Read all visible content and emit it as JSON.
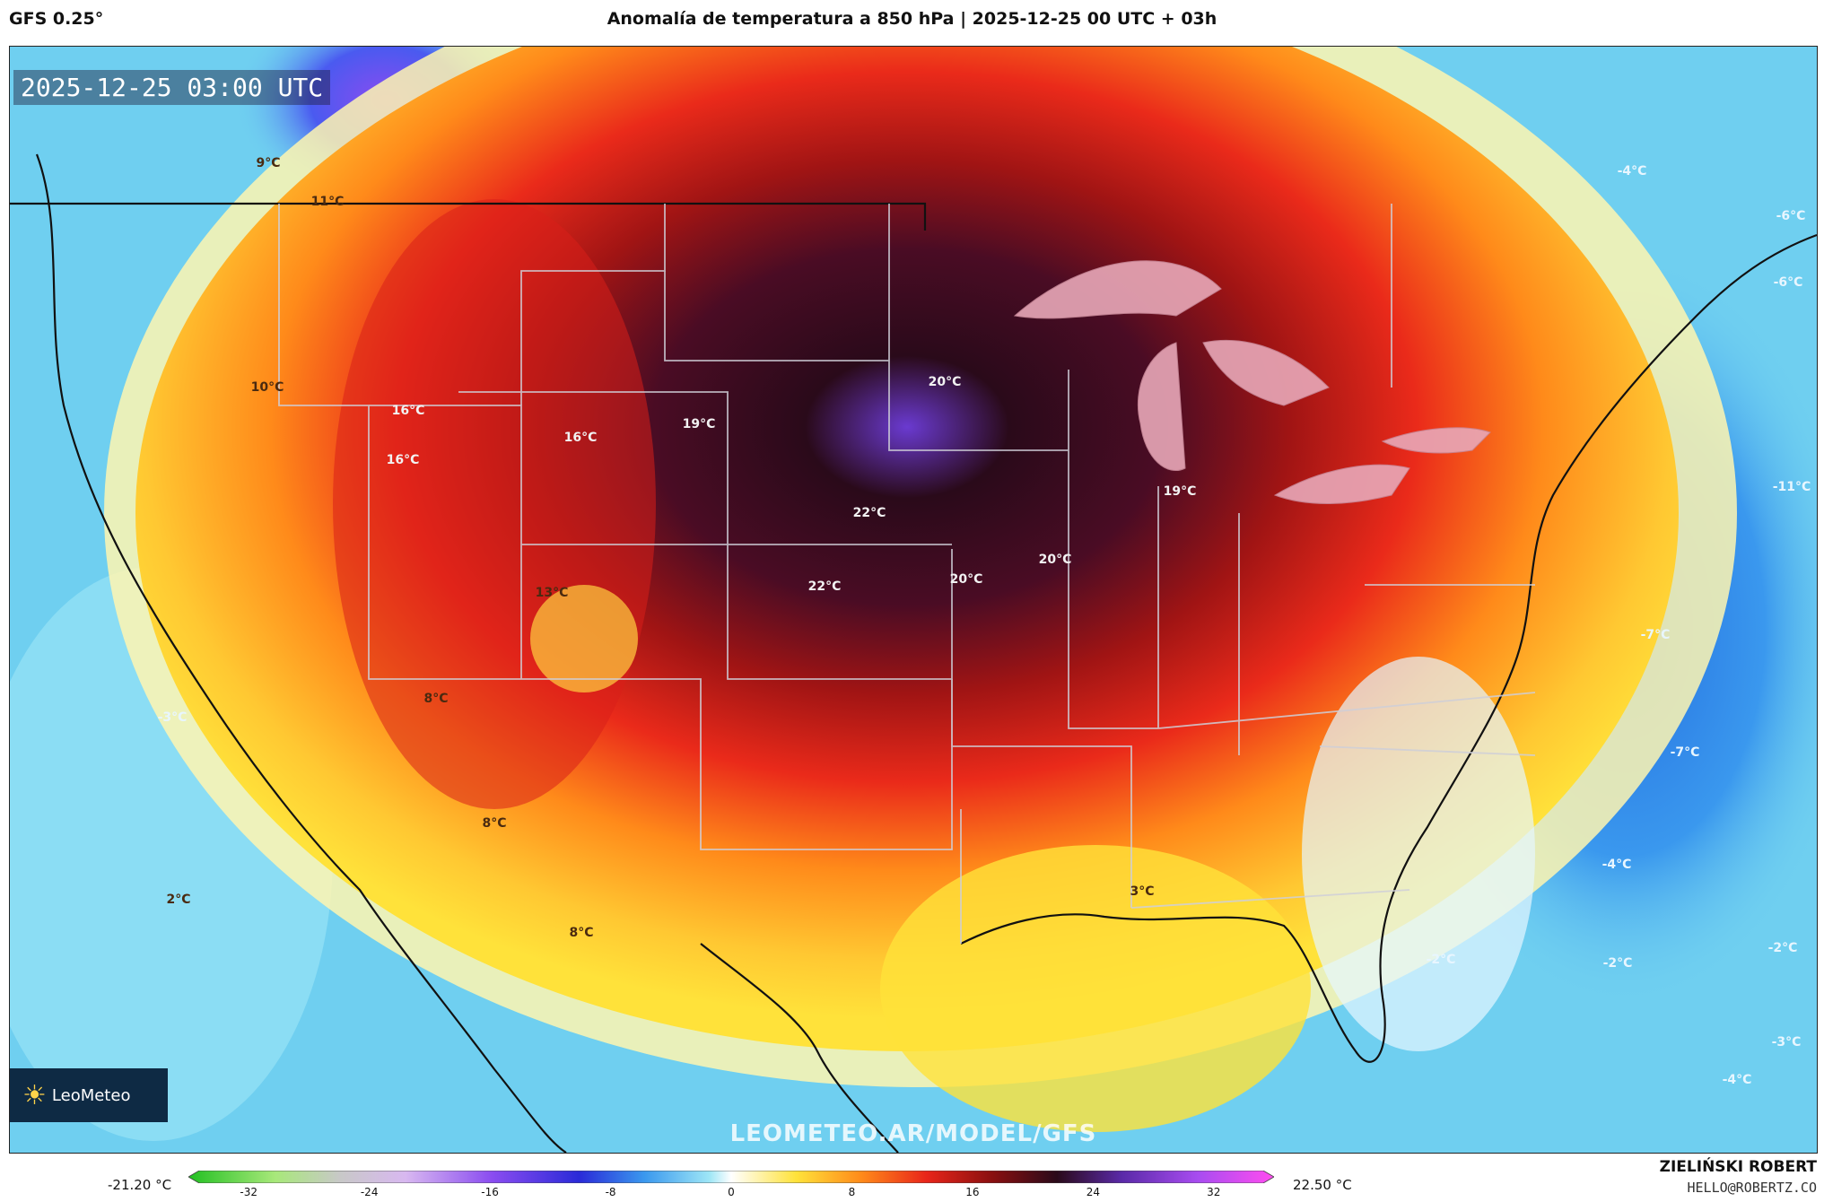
{
  "header": {
    "model": "GFS 0.25°",
    "title": "Anomalía de temperatura a 850 hPa | 2025-12-25 00 UTC + 03h"
  },
  "map": {
    "timestamp": "2025-12-25 03:00 UTC",
    "watermark": "LEOMETEO.AR/MODEL/GFS",
    "logo_text": "LeoMeteo",
    "labels": [
      "9°C",
      "11°C",
      "10°C",
      "16°C",
      "16°C",
      "16°C",
      "19°C",
      "20°C",
      "22°C",
      "22°C",
      "20°C",
      "20°C",
      "19°C",
      "13°C",
      "8°C",
      "8°C",
      "8°C",
      "2°C",
      "3°C",
      "-4°C",
      "-6°C",
      "-6°C",
      "-11°C",
      "-7°C",
      "-7°C",
      "-4°C",
      "-2°C",
      "-2°C",
      "-2°C",
      "-3°C",
      "-4°C",
      "-3°C"
    ],
    "colors": {
      "ocean": "#6fcff0",
      "deep_ocean": "#2a7de0",
      "yellow": "#ffe23a",
      "orange": "#ff8a1a",
      "red": "#e8251a",
      "darkred": "#8a0f10",
      "black": "#2a0a1a",
      "purple": "#7a4ad8",
      "cold_purple": "#8a4cf0"
    }
  },
  "colorbar": {
    "min_label": "-21.20 °C",
    "max_label": "22.50 °C",
    "ticks": [
      "-32",
      "-24",
      "-16",
      "-8",
      "0",
      "8",
      "16",
      "24",
      "32"
    ],
    "range": [
      -36,
      36
    ]
  },
  "footer": {
    "author": "ZIELIŃSKI ROBERT",
    "email": "HELLO@ROBERTZ.CO"
  }
}
